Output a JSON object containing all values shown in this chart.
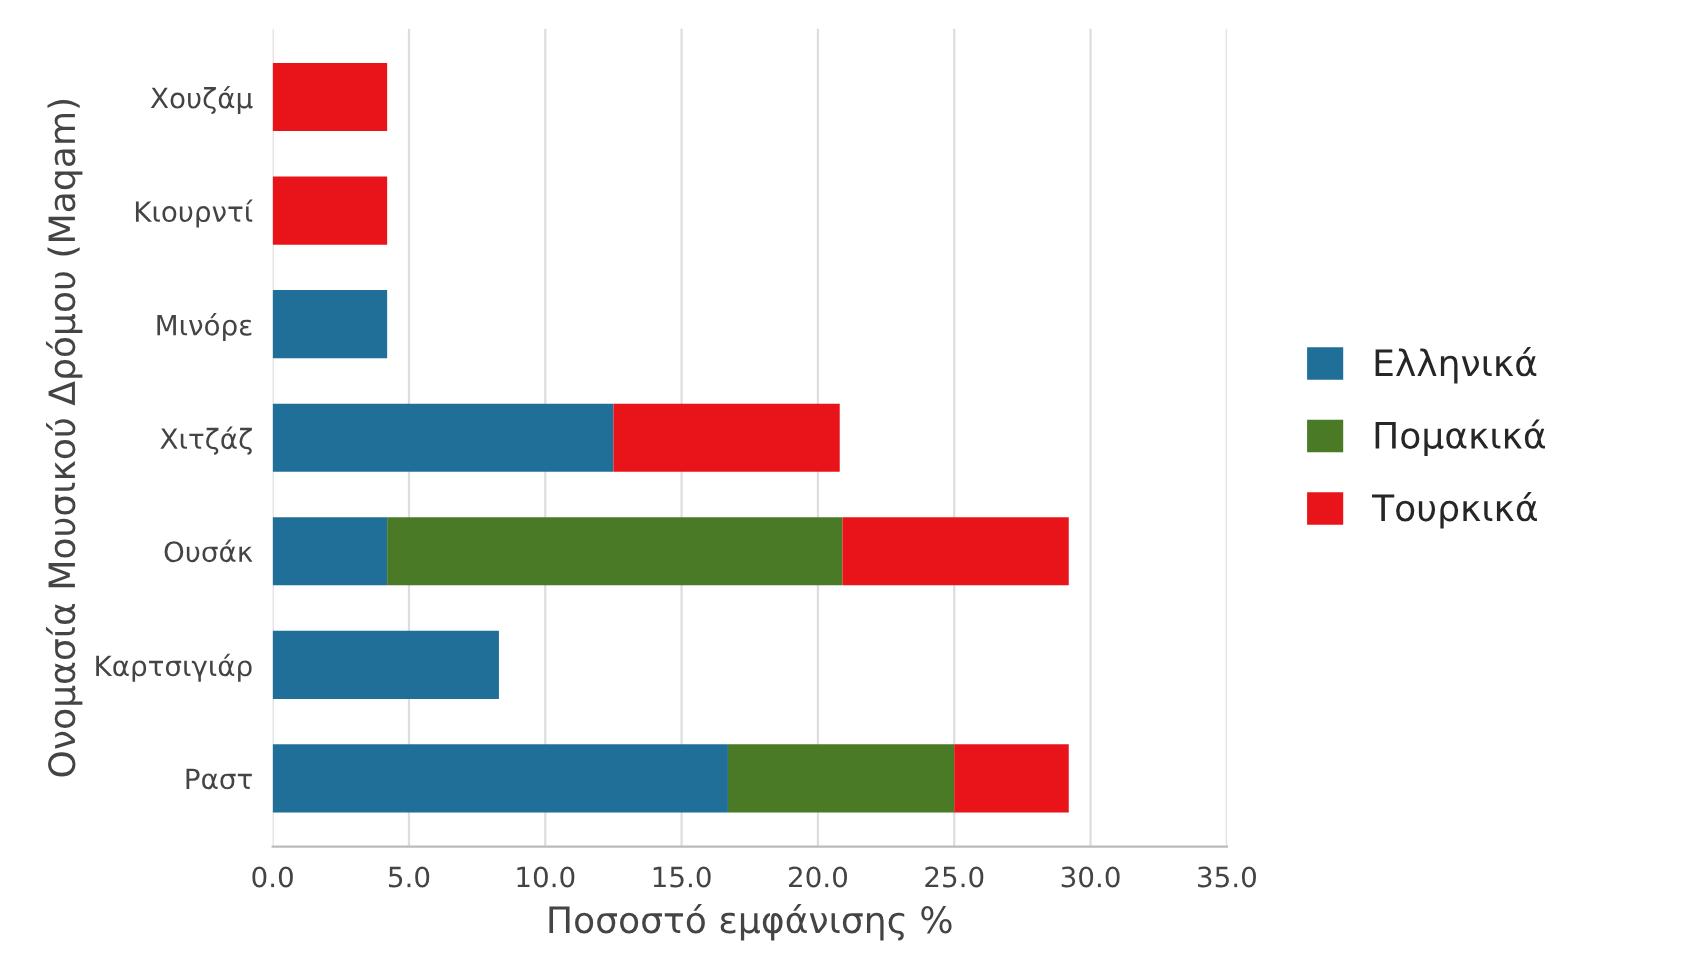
{
  "chart_data": {
    "type": "bar",
    "orientation": "horizontal",
    "stacked": true,
    "xlabel": "Ποσοστό εμφάνισης %",
    "ylabel": "Ονομασία Μουσικού Δρόμου (Maqam)",
    "categories": [
      "Χουζάμ",
      "Κιουρντί",
      "Μινόρε",
      "Χιτζάζ",
      "Ουσάκ",
      "Καρτσιγιάρ",
      "Ραστ"
    ],
    "series": [
      {
        "name": "Ελληνικά",
        "color": "#1f6f98",
        "values": [
          null,
          null,
          4.2,
          12.5,
          4.2,
          8.3,
          16.7
        ]
      },
      {
        "name": "Πομακικά",
        "color": "#4a7a26",
        "values": [
          null,
          null,
          null,
          null,
          16.7,
          null,
          8.3
        ]
      },
      {
        "name": "Τουρκικά",
        "color": "#e8141a",
        "values": [
          4.2,
          4.2,
          null,
          8.3,
          8.3,
          null,
          4.2
        ]
      }
    ],
    "xlim": [
      0,
      35
    ],
    "xticks": [
      {
        "value": 0,
        "label": "0.0"
      },
      {
        "value": 5,
        "label": "5.0"
      },
      {
        "value": 10,
        "label": "10.0"
      },
      {
        "value": 15,
        "label": "15.0"
      },
      {
        "value": 20,
        "label": "20.0"
      },
      {
        "value": 25,
        "label": "25.0"
      },
      {
        "value": 30,
        "label": "30.0"
      },
      {
        "value": 35,
        "label": "35.0"
      }
    ],
    "grid": "x",
    "legend": "right"
  }
}
